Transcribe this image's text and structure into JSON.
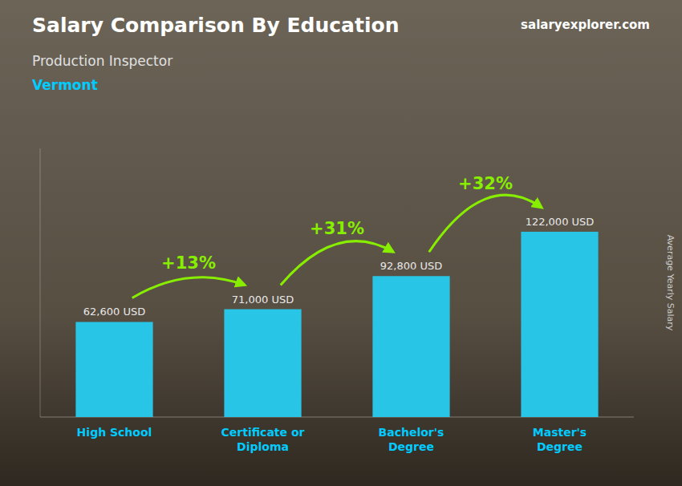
{
  "chart_data": {
    "type": "bar",
    "title": "Salary Comparison By Education",
    "subtitle": "Production Inspector",
    "location": "Vermont",
    "source": "salaryexplorer.com",
    "ylabel": "Average Yearly Salary",
    "categories": [
      "High School",
      "Certificate or\nDiploma",
      "Bachelor's\nDegree",
      "Master's\nDegree"
    ],
    "values": [
      62600,
      71000,
      92800,
      122000
    ],
    "value_labels": [
      "62,600 USD",
      "71,000 USD",
      "92,800 USD",
      "122,000 USD"
    ],
    "annotations": [
      "+13%",
      "+31%",
      "+32%"
    ],
    "color": "#29c5e6",
    "ylim": [
      0,
      176900
    ],
    "data_labels": true,
    "tick_labels": "x",
    "grid": false
  }
}
